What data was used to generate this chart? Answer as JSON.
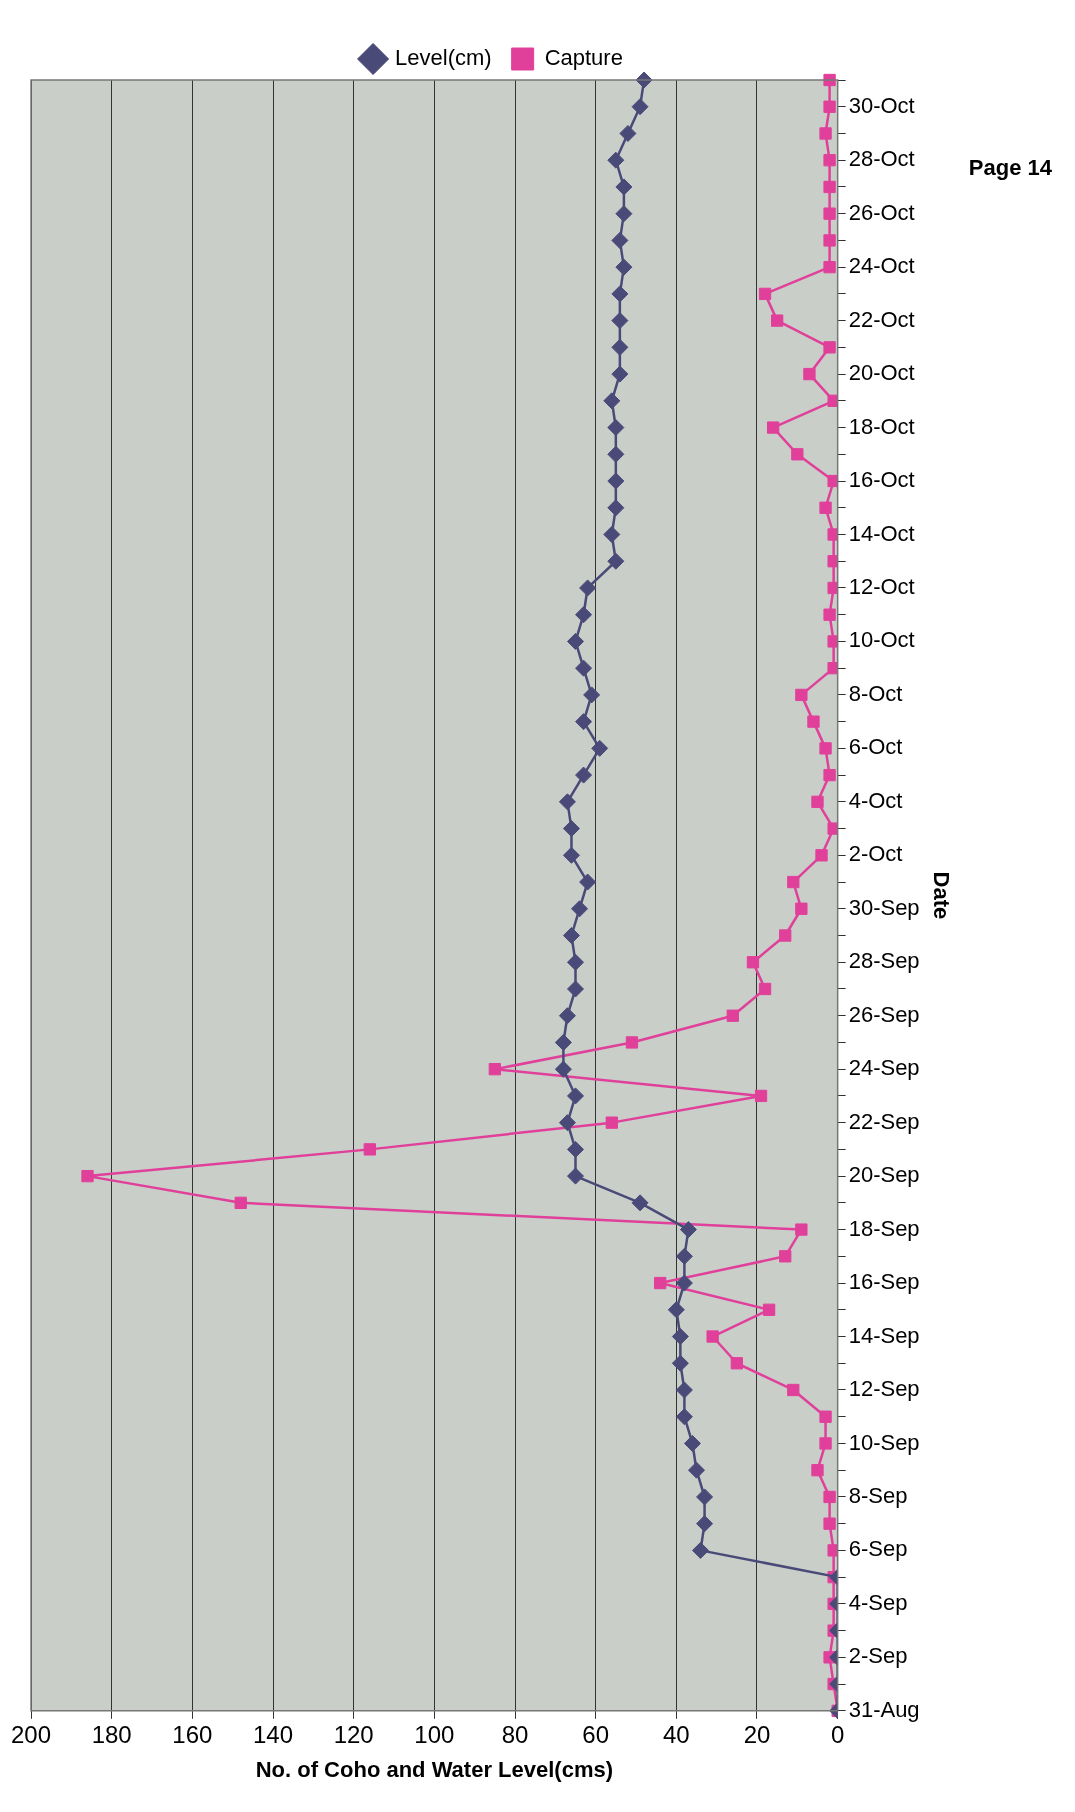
{
  "chart_data": {
    "type": "line",
    "orientation": "horizontal",
    "xlabel": "No. of Coho and Water Level(cms)",
    "ylabel": "Date",
    "categories": [
      null,
      "30-Oct",
      null,
      "28-Oct",
      null,
      "26-Oct",
      null,
      "24-Oct",
      null,
      "22-Oct",
      null,
      "20-Oct",
      null,
      "18-Oct",
      null,
      "16-Oct",
      null,
      "14-Oct",
      null,
      "12-Oct",
      null,
      "10-Oct",
      null,
      "8-Oct",
      null,
      "6-Oct",
      null,
      "4-Oct",
      null,
      "2-Oct",
      null,
      "30-Sep",
      null,
      "28-Sep",
      null,
      "26-Sep",
      null,
      "24-Sep",
      null,
      "22-Sep",
      null,
      "20-Sep",
      null,
      "18-Sep",
      null,
      "16-Sep",
      null,
      "14-Sep",
      null,
      "12-Sep",
      null,
      "10-Sep",
      null,
      "8-Sep",
      null,
      "6-Sep",
      null,
      "4-Sep",
      null,
      "2-Sep",
      null,
      "31-Aug"
    ],
    "series": [
      {
        "name": "Level(cm)",
        "color": "#4a4a78",
        "marker": "diamond",
        "values": [
          48,
          49,
          52,
          55,
          53,
          53,
          54,
          53,
          54,
          54,
          54,
          54,
          56,
          55,
          55,
          55,
          55,
          56,
          55,
          62,
          63,
          65,
          63,
          61,
          63,
          59,
          63,
          67,
          66,
          66,
          62,
          64,
          66,
          65,
          65,
          67,
          68,
          68,
          65,
          67,
          65,
          65,
          49,
          37,
          38,
          38,
          40,
          39,
          39,
          38,
          38,
          36,
          35,
          33,
          33,
          34,
          0,
          0,
          0,
          0,
          0,
          0
        ]
      },
      {
        "name": "Capture",
        "color": "#e0409a",
        "marker": "square",
        "values": [
          2,
          2,
          3,
          2,
          2,
          2,
          2,
          2,
          18,
          15,
          2,
          7,
          1,
          16,
          10,
          1,
          3,
          1,
          1,
          1,
          2,
          1,
          1,
          9,
          6,
          3,
          2,
          5,
          1,
          4,
          11,
          9,
          13,
          21,
          18,
          26,
          51,
          85,
          19,
          56,
          116,
          186,
          148,
          9,
          13,
          44,
          17,
          31,
          25,
          11,
          3,
          3,
          5,
          2,
          2,
          1,
          1,
          1,
          1,
          2,
          1,
          0
        ]
      }
    ],
    "xlim": [
      200,
      0
    ],
    "xticks": [
      200,
      180,
      160,
      140,
      120,
      100,
      80,
      60,
      40,
      20,
      0
    ],
    "grid": "x",
    "legend": "top",
    "line_style": "solid",
    "annotations": [
      "Page 14"
    ]
  }
}
